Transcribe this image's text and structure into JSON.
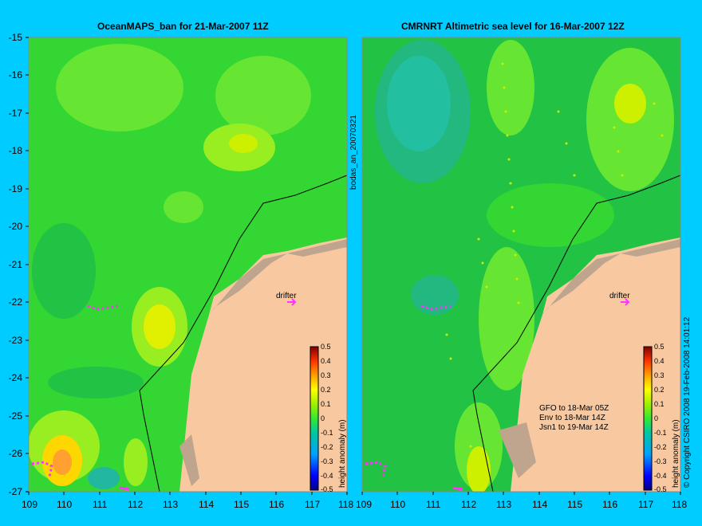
{
  "colors": {
    "background": "#00ccff",
    "land": "#f8c8a0",
    "land_dark": "#bfa48e",
    "drifter": "#ff33ff"
  },
  "panels": [
    {
      "title": "OceanMAPS_ban for 21-Mar-2007 11Z"
    },
    {
      "title": "CMRNRT Altimetric sea level  for 16-Mar-2007 12Z"
    }
  ],
  "y_ticks": [
    "-15",
    "-16",
    "-17",
    "-18",
    "-19",
    "-20",
    "-21",
    "-22",
    "-23",
    "-24",
    "-25",
    "-26",
    "-27"
  ],
  "x_ticks": [
    "109",
    "110",
    "111",
    "112",
    "113",
    "114",
    "115",
    "116",
    "117",
    "118"
  ],
  "colorbar": {
    "label": "height anomaly (m)",
    "ticks": [
      "0.5",
      "0.4",
      "0.3",
      "0.2",
      "0.1",
      "0",
      "-0.1",
      "-0.2",
      "-0.3",
      "-0.4",
      "-0.5"
    ]
  },
  "side_text": "bodas_an_20070321",
  "right_text": "© Copyright CSIRO 2008   19-Feb-2008 14:01:12",
  "drifter_label": "drifter",
  "tracks": [
    "GFO to 18-Mar 05Z",
    "Env to 18-Mar 14Z",
    "Jsn1 to 19-Mar 14Z"
  ]
}
